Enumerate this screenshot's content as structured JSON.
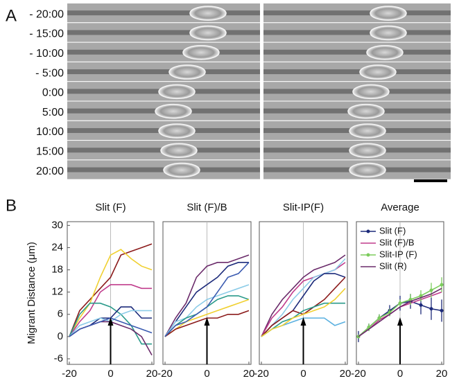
{
  "panel_a": {
    "label": "A",
    "times": [
      "- 20:00",
      "- 15:00",
      "- 10:00",
      "- 5:00",
      "0:00",
      "5:00",
      "10:00",
      "15:00",
      "20:00"
    ]
  },
  "panel_b_label": "B",
  "chart_data": [
    {
      "type": "line",
      "title": "Slit (F)",
      "y_label": "Migrant Distance (μm)",
      "x": [
        -20,
        -15,
        -10,
        -5,
        0,
        5,
        10,
        15,
        20
      ],
      "xlim": [
        -21,
        21
      ],
      "xticks": [
        -20,
        0,
        20
      ],
      "ylim": [
        -7.5,
        31
      ],
      "yticks": [
        -6,
        0,
        6,
        12,
        18,
        24,
        30
      ],
      "series": [
        {
          "color": "#8b1a1a",
          "values": [
            0,
            7,
            10,
            13,
            16,
            22,
            23,
            24,
            25
          ]
        },
        {
          "color": "#f0d030",
          "values": [
            0,
            5,
            9,
            16,
            22,
            23.5,
            21,
            19,
            18
          ]
        },
        {
          "color": "#c03c8c",
          "values": [
            0,
            4,
            7,
            12,
            14,
            14,
            14,
            13,
            13
          ]
        },
        {
          "color": "#2a9a8a",
          "values": [
            0,
            6,
            9,
            9,
            8,
            6,
            3,
            -2,
            -2
          ]
        },
        {
          "color": "#1c2a7a",
          "values": [
            0,
            2,
            3,
            5,
            5,
            8,
            8,
            5,
            5
          ]
        },
        {
          "color": "#8ccce8",
          "values": [
            0,
            3,
            4,
            5,
            4,
            6,
            7,
            7,
            7
          ]
        },
        {
          "color": "#6a2a6a",
          "values": [
            0,
            2,
            3,
            4,
            4,
            3,
            2,
            0,
            -5
          ]
        },
        {
          "color": "#3a5ab0",
          "values": [
            0,
            2,
            3,
            4,
            5,
            4,
            3,
            2,
            1
          ]
        }
      ]
    },
    {
      "type": "line",
      "title": "Slit (F)/B",
      "x": [
        -20,
        -15,
        -10,
        -5,
        0,
        5,
        10,
        15,
        20
      ],
      "xlim": [
        -21,
        21
      ],
      "xticks": [
        -20,
        0,
        20
      ],
      "ylim": [
        -7.5,
        31
      ],
      "series": [
        {
          "color": "#6a2a6a",
          "values": [
            0,
            5,
            9,
            16,
            19,
            20,
            20,
            21,
            22
          ]
        },
        {
          "color": "#1c2a7a",
          "values": [
            0,
            4,
            8,
            12,
            14,
            16,
            19,
            20,
            20
          ]
        },
        {
          "color": "#8ccce8",
          "values": [
            0,
            4,
            5,
            8,
            10,
            11,
            12,
            13,
            14
          ]
        },
        {
          "color": "#2a9a8a",
          "values": [
            0,
            3,
            5,
            6,
            8,
            10,
            11,
            11,
            10
          ]
        },
        {
          "color": "#f0d030",
          "values": [
            0,
            2,
            4,
            5,
            6,
            7,
            8,
            9,
            10
          ]
        },
        {
          "color": "#8b1a1a",
          "values": [
            0,
            2,
            3,
            4,
            5,
            5,
            6,
            6,
            7
          ]
        },
        {
          "color": "#3a5ab0",
          "values": [
            0,
            3,
            4,
            6,
            8,
            12,
            16,
            17,
            20
          ]
        }
      ]
    },
    {
      "type": "line",
      "title": "Slit-IP(F)",
      "x": [
        -20,
        -15,
        -10,
        -5,
        0,
        5,
        10,
        15,
        20
      ],
      "xlim": [
        -21,
        21
      ],
      "xticks": [
        -20,
        0,
        20
      ],
      "ylim": [
        -7.5,
        31
      ],
      "series": [
        {
          "color": "#6a2a6a",
          "values": [
            0,
            6,
            10,
            13,
            16,
            18,
            19,
            20,
            22
          ]
        },
        {
          "color": "#c03c8c",
          "values": [
            0,
            5,
            8,
            12,
            15,
            16,
            17,
            18,
            20
          ]
        },
        {
          "color": "#8ccce8",
          "values": [
            0,
            3,
            6,
            10,
            13,
            16,
            17,
            18,
            21
          ]
        },
        {
          "color": "#1c2a7a",
          "values": [
            0,
            3,
            5,
            7,
            11,
            15,
            17,
            17,
            16
          ]
        },
        {
          "color": "#8b1a1a",
          "values": [
            0,
            3,
            5,
            7,
            6,
            8,
            10,
            13,
            16
          ]
        },
        {
          "color": "#2a9a8a",
          "values": [
            0,
            2,
            4,
            5,
            7,
            8,
            9,
            9,
            9
          ]
        },
        {
          "color": "#5ab0e0",
          "values": [
            0,
            2,
            3,
            4,
            5,
            5,
            5,
            3,
            4
          ]
        },
        {
          "color": "#f0d030",
          "values": [
            0,
            2,
            3,
            5,
            6,
            7,
            8,
            10,
            13
          ]
        }
      ]
    },
    {
      "type": "line",
      "title": "Average",
      "x": [
        -20,
        -15,
        -10,
        -5,
        0,
        5,
        10,
        15,
        20
      ],
      "xlim": [
        -21,
        21
      ],
      "xticks": [
        -20,
        0,
        20
      ],
      "ylim": [
        -7.5,
        31
      ],
      "legend": "upper left",
      "series": [
        {
          "name": "Slit (F)",
          "color": "#1c2a7a",
          "markers": true,
          "values": [
            0,
            2.5,
            5,
            7,
            9,
            9.5,
            8.5,
            7.5,
            7
          ],
          "errors": [
            1.5,
            1,
            1,
            1.5,
            2,
            2,
            2.5,
            3,
            3
          ]
        },
        {
          "name": "Slit (F)/B",
          "color": "#c03c8c",
          "values": [
            0,
            2,
            4.5,
            6,
            8,
            9,
            10,
            11,
            12
          ]
        },
        {
          "name": "Slit-IP (F)",
          "color": "#7ccc5c",
          "markers": true,
          "values": [
            0,
            2.5,
            5,
            6.5,
            9,
            10,
            11,
            12.5,
            14
          ],
          "errors": [
            0.5,
            1,
            1,
            1,
            1,
            1.5,
            1.5,
            2,
            2
          ]
        },
        {
          "name": "Slit (R)",
          "color": "#6a2a6a",
          "values": [
            0,
            2,
            4,
            6,
            8,
            9.5,
            10.5,
            11.5,
            13
          ]
        }
      ]
    }
  ]
}
